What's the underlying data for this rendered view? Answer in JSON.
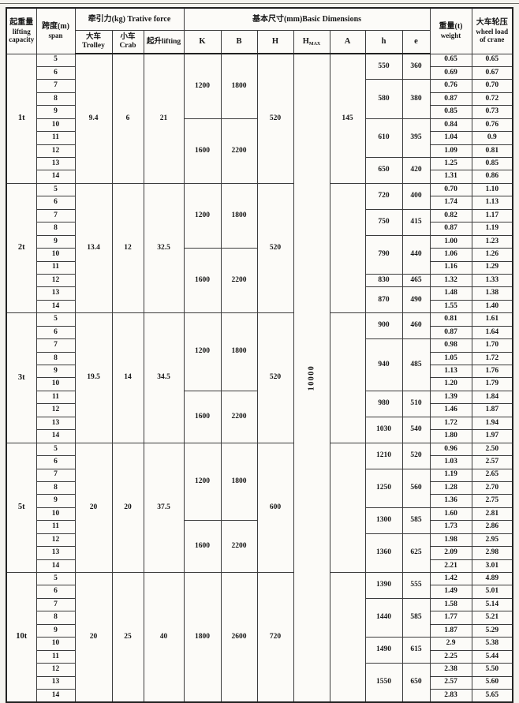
{
  "header": {
    "capacity": [
      "起重量",
      "lifting",
      "capacity"
    ],
    "span": [
      "跨度(m)",
      "span"
    ],
    "traction": "牵引力(kg)  Trative force",
    "trolley": "大车Trolley",
    "crab": "小车Crab",
    "lifting": "起升lifting",
    "dimensions": "基本尺寸(mm)Basic Dimensions",
    "k": "K",
    "b": "B",
    "h_dim": "H",
    "hmax": "H",
    "hmax_sub": "MAX",
    "a": "A",
    "h": "h",
    "e": "e",
    "weight": [
      "重量(t)",
      "weight"
    ],
    "wheel": [
      "大车轮压",
      "wheel load",
      "of crane"
    ]
  },
  "hmax_value": "10000",
  "groups": [
    {
      "capacity": "1t",
      "trolley": "9.4",
      "crab": "6",
      "lifting": "21",
      "H": "520",
      "A": "145",
      "kb": [
        {
          "n": 5,
          "K": "1200",
          "B": "1800"
        },
        {
          "n": 5,
          "K": "1600",
          "B": "2200"
        }
      ],
      "he": [
        {
          "n": 2,
          "h": "550",
          "e": "360"
        },
        {
          "n": 3,
          "h": "580",
          "e": "380"
        },
        {
          "n": 3,
          "h": "610",
          "e": "395"
        },
        {
          "n": 2,
          "h": "650",
          "e": "420"
        }
      ],
      "rows": [
        {
          "span": "5",
          "weight": "0.65",
          "wheel": "0.65"
        },
        {
          "span": "6",
          "weight": "0.69",
          "wheel": "0.67"
        },
        {
          "span": "7",
          "weight": "0.76",
          "wheel": "0.70"
        },
        {
          "span": "8",
          "weight": "0.87",
          "wheel": "0.72"
        },
        {
          "span": "9",
          "weight": "0.85",
          "wheel": "0.73"
        },
        {
          "span": "10",
          "weight": "0.84",
          "wheel": "0.76"
        },
        {
          "span": "11",
          "weight": "1.04",
          "wheel": "0.9"
        },
        {
          "span": "12",
          "weight": "1.09",
          "wheel": "0.81"
        },
        {
          "span": "13",
          "weight": "1.25",
          "wheel": "0.85"
        },
        {
          "span": "14",
          "weight": "1.31",
          "wheel": "0.86"
        }
      ]
    },
    {
      "capacity": "2t",
      "trolley": "13.4",
      "crab": "12",
      "lifting": "32.5",
      "H": "520",
      "A": "",
      "kb": [
        {
          "n": 5,
          "K": "1200",
          "B": "1800"
        },
        {
          "n": 5,
          "K": "1600",
          "B": "2200"
        }
      ],
      "he": [
        {
          "n": 2,
          "h": "720",
          "e": "400"
        },
        {
          "n": 2,
          "h": "750",
          "e": "415"
        },
        {
          "n": 3,
          "h": "790",
          "e": "440"
        },
        {
          "n": 1,
          "h": "830",
          "e": "465"
        },
        {
          "n": 2,
          "h": "870",
          "e": "490"
        }
      ],
      "rows": [
        {
          "span": "5",
          "weight": "0.70",
          "wheel": "1.10"
        },
        {
          "span": "6",
          "weight": "1.74",
          "wheel": "1.13"
        },
        {
          "span": "7",
          "weight": "0.82",
          "wheel": "1.17"
        },
        {
          "span": "8",
          "weight": "0.87",
          "wheel": "1.19"
        },
        {
          "span": "9",
          "weight": "1.00",
          "wheel": "1.23"
        },
        {
          "span": "10",
          "weight": "1.06",
          "wheel": "1.26"
        },
        {
          "span": "11",
          "weight": "1.16",
          "wheel": "1.29"
        },
        {
          "span": "12",
          "weight": "1.32",
          "wheel": "1.33"
        },
        {
          "span": "13",
          "weight": "1.48",
          "wheel": "1.38"
        },
        {
          "span": "14",
          "weight": "1.55",
          "wheel": "1.40"
        }
      ]
    },
    {
      "capacity": "3t",
      "trolley": "19.5",
      "crab": "14",
      "lifting": "34.5",
      "H": "520",
      "A": "",
      "kb": [
        {
          "n": 6,
          "K": "1200",
          "B": "1800"
        },
        {
          "n": 4,
          "K": "1600",
          "B": "2200"
        }
      ],
      "he": [
        {
          "n": 2,
          "h": "900",
          "e": "460"
        },
        {
          "n": 4,
          "h": "940",
          "e": "485"
        },
        {
          "n": 2,
          "h": "980",
          "e": "510"
        },
        {
          "n": 2,
          "h": "1030",
          "e": "540"
        }
      ],
      "rows": [
        {
          "span": "5",
          "weight": "0.81",
          "wheel": "1.61"
        },
        {
          "span": "6",
          "weight": "0.87",
          "wheel": "1.64"
        },
        {
          "span": "7",
          "weight": "0.98",
          "wheel": "1.70"
        },
        {
          "span": "8",
          "weight": "1.05",
          "wheel": "1.72"
        },
        {
          "span": "9",
          "weight": "1.13",
          "wheel": "1.76"
        },
        {
          "span": "10",
          "weight": "1.20",
          "wheel": "1.79"
        },
        {
          "span": "11",
          "weight": "1.39",
          "wheel": "1.84"
        },
        {
          "span": "12",
          "weight": "1.46",
          "wheel": "1.87"
        },
        {
          "span": "13",
          "weight": "1.72",
          "wheel": "1.94"
        },
        {
          "span": "14",
          "weight": "1.80",
          "wheel": "1.97"
        }
      ]
    },
    {
      "capacity": "5t",
      "trolley": "20",
      "crab": "20",
      "lifting": "37.5",
      "H": "600",
      "A": "",
      "kb": [
        {
          "n": 6,
          "K": "1200",
          "B": "1800"
        },
        {
          "n": 4,
          "K": "1600",
          "B": "2200"
        }
      ],
      "he": [
        {
          "n": 2,
          "h": "1210",
          "e": "520"
        },
        {
          "n": 3,
          "h": "1250",
          "e": "560"
        },
        {
          "n": 2,
          "h": "1300",
          "e": "585"
        },
        {
          "n": 3,
          "h": "1360",
          "e": "625"
        }
      ],
      "rows": [
        {
          "span": "5",
          "weight": "0.96",
          "wheel": "2.50"
        },
        {
          "span": "6",
          "weight": "1.03",
          "wheel": "2.57"
        },
        {
          "span": "7",
          "weight": "1.19",
          "wheel": "2.65"
        },
        {
          "span": "8",
          "weight": "1.28",
          "wheel": "2.70"
        },
        {
          "span": "9",
          "weight": "1.36",
          "wheel": "2.75"
        },
        {
          "span": "10",
          "weight": "1.60",
          "wheel": "2.81"
        },
        {
          "span": "11",
          "weight": "1.73",
          "wheel": "2.86"
        },
        {
          "span": "12",
          "weight": "1.98",
          "wheel": "2.95"
        },
        {
          "span": "13",
          "weight": "2.09",
          "wheel": "2.98"
        },
        {
          "span": "14",
          "weight": "2.21",
          "wheel": "3.01"
        }
      ]
    },
    {
      "capacity": "10t",
      "trolley": "20",
      "crab": "25",
      "lifting": "40",
      "H": "720",
      "A": "",
      "kb": [
        {
          "n": 10,
          "K": "1800",
          "B": "2600"
        }
      ],
      "he": [
        {
          "n": 2,
          "h": "1390",
          "e": "555"
        },
        {
          "n": 3,
          "h": "1440",
          "e": "585"
        },
        {
          "n": 2,
          "h": "1490",
          "e": "615"
        },
        {
          "n": 3,
          "h": "1550",
          "e": "650"
        }
      ],
      "rows": [
        {
          "span": "5",
          "weight": "1.42",
          "wheel": "4.89"
        },
        {
          "span": "6",
          "weight": "1.49",
          "wheel": "5.01"
        },
        {
          "span": "7",
          "weight": "1.58",
          "wheel": "5.14"
        },
        {
          "span": "8",
          "weight": "1.77",
          "wheel": "5.21"
        },
        {
          "span": "9",
          "weight": "1.87",
          "wheel": "5.29"
        },
        {
          "span": "10",
          "weight": "2.9",
          "wheel": "5.38"
        },
        {
          "span": "11",
          "weight": "2.25",
          "wheel": "5.44"
        },
        {
          "span": "12",
          "weight": "2.38",
          "wheel": "5.50"
        },
        {
          "span": "13",
          "weight": "2.57",
          "wheel": "5.60"
        },
        {
          "span": "14",
          "weight": "2.83",
          "wheel": "5.65"
        }
      ]
    }
  ]
}
